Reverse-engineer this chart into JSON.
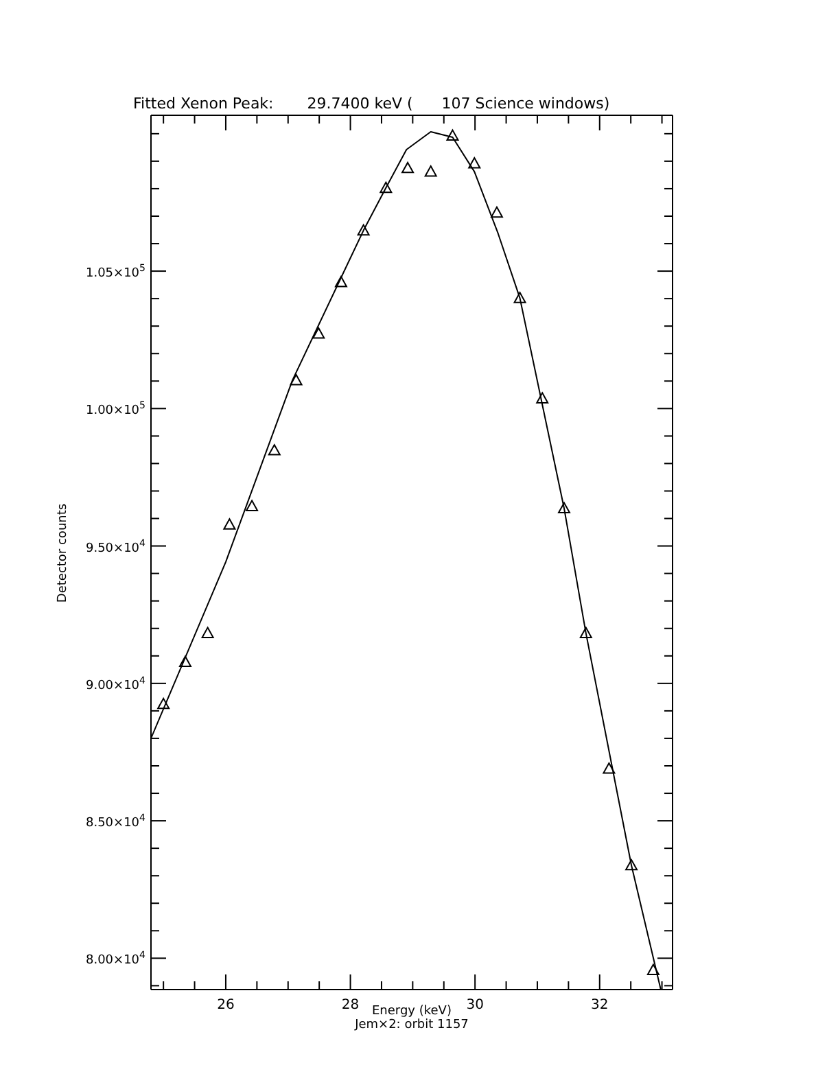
{
  "chart_data": {
    "type": "scatter",
    "title": "Fitted Xenon Peak:       29.7400 keV (      107 Science windows)",
    "xlabel": "Energy (keV)",
    "ylabel": "Detector counts",
    "annotations": [
      "Jem×2: orbit 1157"
    ],
    "xlim": [
      24.8,
      33.17
    ],
    "ylim": [
      78860,
      110670
    ],
    "xticks": [
      {
        "value": 25,
        "label": null
      },
      {
        "value": 25.5,
        "label": null
      },
      26,
      {
        "value": 26.5,
        "label": null
      },
      {
        "value": 27,
        "label": null
      },
      {
        "value": 27.5,
        "label": null
      },
      28,
      {
        "value": 28.5,
        "label": null
      },
      {
        "value": 29,
        "label": null
      },
      {
        "value": 29.5,
        "label": null
      },
      30,
      {
        "value": 30.5,
        "label": null
      },
      {
        "value": 31,
        "label": null
      },
      {
        "value": 31.5,
        "label": null
      },
      32,
      {
        "value": 32.5,
        "label": null
      },
      {
        "value": 33,
        "label": null
      }
    ],
    "yticks": [
      {
        "value": 79000,
        "label": null
      },
      {
        "value": 80000,
        "label": "8.00×10$^{4}$"
      },
      {
        "value": 81000,
        "label": null
      },
      {
        "value": 82000,
        "label": null
      },
      {
        "value": 83000,
        "label": null
      },
      {
        "value": 84000,
        "label": null
      },
      {
        "value": 85000,
        "label": "8.50×10$^{4}$"
      },
      {
        "value": 86000,
        "label": null
      },
      {
        "value": 87000,
        "label": null
      },
      {
        "value": 88000,
        "label": null
      },
      {
        "value": 89000,
        "label": null
      },
      {
        "value": 90000,
        "label": "9.00×10$^{4}$"
      },
      {
        "value": 91000,
        "label": null
      },
      {
        "value": 92000,
        "label": null
      },
      {
        "value": 93000,
        "label": null
      },
      {
        "value": 94000,
        "label": null
      },
      {
        "value": 95000,
        "label": "9.50×10$^{4}$"
      },
      {
        "value": 96000,
        "label": null
      },
      {
        "value": 97000,
        "label": null
      },
      {
        "value": 98000,
        "label": null
      },
      {
        "value": 99000,
        "label": null
      },
      {
        "value": 100000,
        "label": "1.00×10$^{5}$"
      },
      {
        "value": 101000,
        "label": null
      },
      {
        "value": 102000,
        "label": null
      },
      {
        "value": 103000,
        "label": null
      },
      {
        "value": 104000,
        "label": null
      },
      {
        "value": 105000,
        "label": "1.05×10$^{5}$"
      },
      {
        "value": 106000,
        "label": null
      },
      {
        "value": 107000,
        "label": null
      },
      {
        "value": 108000,
        "label": null
      },
      {
        "value": 109000,
        "label": null
      },
      {
        "value": 110000,
        "label": null
      }
    ],
    "grid": false,
    "legend": false,
    "marker": "triangle",
    "series": [
      {
        "color": "#000000",
        "x": [
          25.0,
          25.35,
          25.71,
          26.06,
          26.42,
          26.78,
          27.13,
          27.49,
          27.85,
          28.21,
          28.57,
          28.92,
          29.29,
          29.64,
          29.99,
          30.35,
          30.72,
          31.08,
          31.43,
          31.78,
          32.15,
          32.51,
          32.86
        ],
        "values": [
          89250,
          90780,
          91830,
          95780,
          96450,
          98480,
          101030,
          102730,
          104600,
          106480,
          108030,
          108750,
          108620,
          109930,
          108920,
          107130,
          104020,
          100370,
          96370,
          91830,
          86900,
          83380,
          79570
        ]
      },
      {
        "type": "line",
        "color": "#000000",
        "marker": "none",
        "line_style": "solid",
        "x": [
          24.8,
          26.0,
          27.07,
          28.21,
          28.57,
          28.9,
          29.29,
          29.64,
          29.99,
          30.37,
          30.72,
          31.43,
          31.78,
          32.51,
          32.98
        ],
        "values": [
          88000,
          94420,
          101030,
          106480,
          108030,
          109420,
          110070,
          109870,
          108620,
          106370,
          104020,
          96370,
          91830,
          83380,
          78870
        ]
      }
    ]
  }
}
